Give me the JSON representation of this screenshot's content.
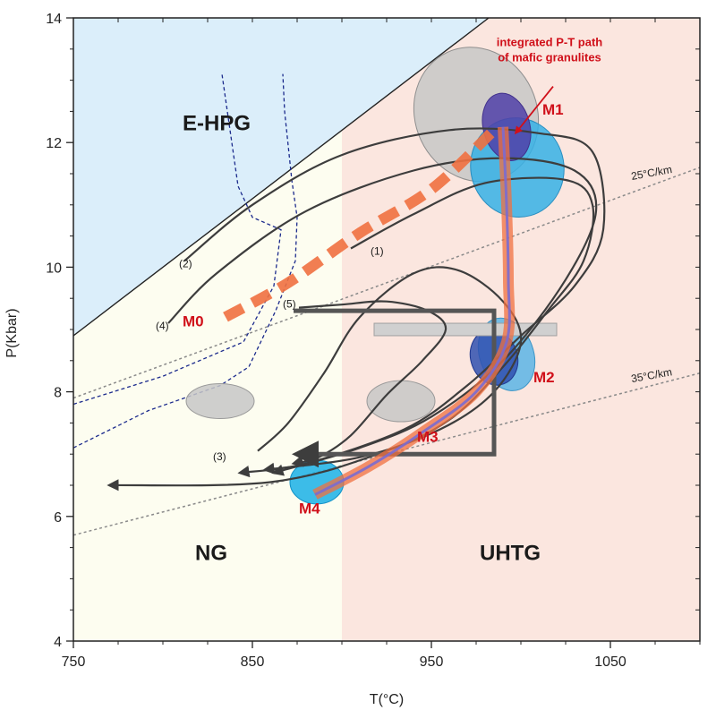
{
  "chart_data": {
    "type": "line",
    "xlabel": "T(°C)",
    "ylabel": "P(Kbar)",
    "xlim": [
      750,
      1100
    ],
    "ylim": [
      4,
      14
    ],
    "x_ticks": [
      750,
      850,
      950,
      1050
    ],
    "y_ticks": [
      4,
      6,
      8,
      10,
      12,
      14
    ],
    "fields": [
      {
        "label": "E-HPG",
        "color": "#dbeefa",
        "text_at": [
          830,
          12.2
        ]
      },
      {
        "label": "NG",
        "color": "#fdfdf0",
        "text_at": [
          827,
          5.3
        ]
      },
      {
        "label": "UHTG",
        "color": "#fbe6df",
        "text_at": [
          994,
          5.3
        ]
      }
    ],
    "field_boundaries": {
      "e_hpg_line": [
        [
          750,
          8.9
        ],
        [
          982,
          14
        ]
      ],
      "ng_uhtg_t": 900
    },
    "geotherms": [
      {
        "label": "25°C/km",
        "points": [
          [
            750,
            7.9
          ],
          [
            1100,
            11.6
          ]
        ],
        "text_at": [
          1062,
          11.4
        ]
      },
      {
        "label": "35°C/km",
        "points": [
          [
            750,
            5.7
          ],
          [
            1100,
            8.3
          ]
        ],
        "text_at": [
          1062,
          8.15
        ]
      }
    ],
    "dashed_blue_lines": [
      [
        [
          750,
          7.8
        ],
        [
          800,
          8.25
        ],
        [
          845,
          8.8
        ],
        [
          862,
          9.7
        ],
        [
          866,
          10.6
        ],
        [
          850,
          10.8
        ],
        [
          842,
          11.3
        ],
        [
          836,
          12.5
        ],
        [
          833,
          13.1
        ]
      ],
      [
        [
          750,
          7.1
        ],
        [
          792,
          7.7
        ],
        [
          832,
          8.1
        ],
        [
          848,
          8.4
        ],
        [
          863,
          9.3
        ],
        [
          874,
          10.1
        ],
        [
          875,
          10.8
        ],
        [
          872,
          11.4
        ],
        [
          868,
          12.5
        ],
        [
          867,
          13.1
        ]
      ]
    ],
    "ellipses": [
      {
        "cx": 933,
        "cy": 7.85,
        "rx": 19,
        "ry": 0.33,
        "angle": 0,
        "color": "#c7c7c7",
        "stroke": "#9a9a9a"
      },
      {
        "cx": 832,
        "cy": 7.85,
        "rx": 19,
        "ry": 0.28,
        "angle": 0,
        "color": "#c7c7c7",
        "stroke": "#9a9a9a"
      },
      {
        "cx": 975,
        "cy": 12.45,
        "rx": 34,
        "ry": 1.1,
        "angle": -25,
        "color": "#c7c7c7",
        "stroke": "#8f8f8f"
      },
      {
        "cx": 998,
        "cy": 11.6,
        "rx": 26,
        "ry": 0.8,
        "angle": -15,
        "color": "#35b0e6",
        "stroke": "#2a8ec0"
      },
      {
        "cx": 992,
        "cy": 12.25,
        "rx": 13,
        "ry": 0.55,
        "angle": -15,
        "color": "#5040a8",
        "stroke": "#41308c"
      },
      {
        "cx": 992,
        "cy": 8.6,
        "rx": 15,
        "ry": 0.6,
        "angle": -20,
        "color": "#5ab4e6",
        "stroke": "#3a94c6"
      },
      {
        "cx": 985,
        "cy": 8.55,
        "rx": 13,
        "ry": 0.45,
        "angle": -20,
        "color": "#3050b0",
        "stroke": "#203890"
      },
      {
        "cx": 886,
        "cy": 6.55,
        "rx": 15,
        "ry": 0.35,
        "angle": 0,
        "color": "#1ab0e6",
        "stroke": "#1290c6"
      }
    ],
    "gray_bar": {
      "x1": 918,
      "x2": 1020,
      "y1": 8.9,
      "y2": 9.1,
      "color": "#d0d0d0"
    },
    "thick_box_path": [
      [
        873,
        9.3
      ],
      [
        985,
        9.3
      ],
      [
        985,
        7.0
      ],
      [
        875,
        7.0
      ]
    ],
    "pt_paths": [
      {
        "label": "(1)",
        "label_at": [
          916,
          10.2
        ],
        "arrow": true,
        "points": [
          [
            905,
            10.3
          ],
          [
            940,
            10.85
          ],
          [
            980,
            11.35
          ],
          [
            1025,
            11.4
          ],
          [
            1040,
            11.0
          ],
          [
            1035,
            10.1
          ],
          [
            1015,
            9.3
          ],
          [
            990,
            8.4
          ],
          [
            960,
            7.55
          ],
          [
            920,
            7.0
          ],
          [
            860,
            6.55
          ],
          [
            770,
            6.5
          ]
        ]
      },
      {
        "label": "(2)",
        "label_at": [
          809,
          10.0
        ],
        "arrow": true,
        "points": [
          [
            812,
            10.1
          ],
          [
            850,
            11.0
          ],
          [
            900,
            11.8
          ],
          [
            960,
            12.2
          ],
          [
            1010,
            12.15
          ],
          [
            1040,
            11.85
          ],
          [
            1046,
            10.6
          ],
          [
            1030,
            9.7
          ],
          [
            1000,
            8.9
          ],
          [
            970,
            8.1
          ],
          [
            935,
            7.4
          ],
          [
            880,
            6.85
          ],
          [
            843,
            6.7
          ]
        ]
      },
      {
        "label": "(3)",
        "label_at": [
          828,
          6.9
        ],
        "arrow": true,
        "points": [
          [
            853,
            7.05
          ],
          [
            870,
            7.5
          ],
          [
            890,
            8.3
          ],
          [
            910,
            9.2
          ],
          [
            940,
            9.9
          ],
          [
            965,
            9.95
          ],
          [
            990,
            9.45
          ],
          [
            1000,
            8.8
          ],
          [
            985,
            8.0
          ],
          [
            955,
            7.4
          ],
          [
            910,
            6.95
          ],
          [
            857,
            6.75
          ]
        ]
      },
      {
        "label": "(4)",
        "label_at": [
          796,
          9.0
        ],
        "arrow": true,
        "points": [
          [
            803,
            9.1
          ],
          [
            830,
            9.9
          ],
          [
            880,
            10.9
          ],
          [
            940,
            11.55
          ],
          [
            990,
            11.75
          ],
          [
            1030,
            11.55
          ],
          [
            1042,
            10.9
          ],
          [
            1025,
            9.8
          ],
          [
            990,
            8.5
          ],
          [
            950,
            7.6
          ],
          [
            910,
            7.1
          ],
          [
            862,
            6.7
          ]
        ]
      },
      {
        "label": "(5)",
        "label_at": [
          867,
          9.35
        ],
        "arrow": true,
        "points": [
          [
            876,
            9.35
          ],
          [
            900,
            9.4
          ],
          [
            925,
            9.45
          ],
          [
            948,
            9.3
          ],
          [
            958,
            9.0
          ],
          [
            945,
            8.5
          ],
          [
            925,
            7.95
          ],
          [
            905,
            7.3
          ],
          [
            887,
            6.95
          ],
          [
            873,
            6.85
          ]
        ]
      }
    ],
    "integrated_path": {
      "M0_to_M1": [
        [
          835,
          9.2
        ],
        [
          870,
          9.75
        ],
        [
          910,
          10.55
        ],
        [
          950,
          11.25
        ],
        [
          985,
          12.2
        ]
      ],
      "M1_to_M4": [
        [
          990,
          12.25
        ],
        [
          992,
          11.0
        ],
        [
          993,
          9.8
        ],
        [
          992,
          8.8
        ],
        [
          975,
          8.0
        ],
        [
          945,
          7.35
        ],
        [
          915,
          6.8
        ],
        [
          885,
          6.35
        ]
      ],
      "color": "#f07040",
      "title": "integrated P-T path\nof mafic granulites"
    },
    "stages": [
      {
        "label": "M0",
        "at": [
          811,
          9.05
        ]
      },
      {
        "label": "M1",
        "at": [
          1012,
          12.45
        ]
      },
      {
        "label": "M2",
        "at": [
          1007,
          8.15
        ]
      },
      {
        "label": "M3",
        "at": [
          942,
          7.2
        ]
      },
      {
        "label": "M4",
        "at": [
          876,
          6.05
        ]
      }
    ],
    "annotation_arrow": {
      "from": [
        1018,
        12.9
      ],
      "to": [
        997,
        12.15
      ]
    },
    "annotation_text_at": [
      1016,
      13.55
    ]
  }
}
